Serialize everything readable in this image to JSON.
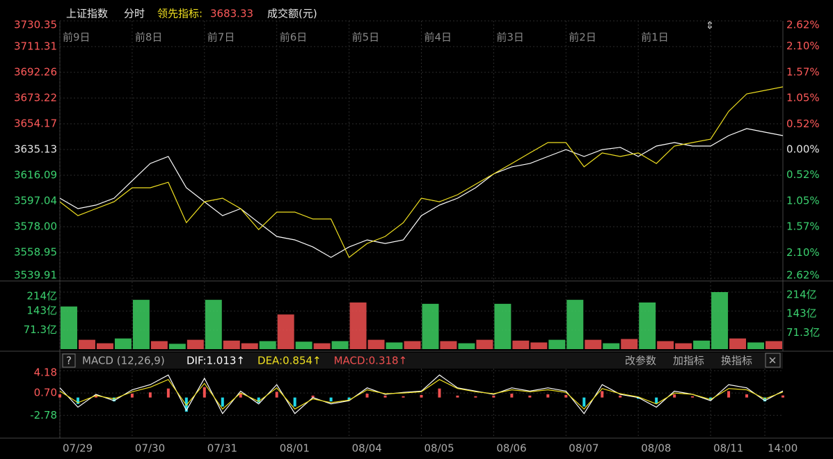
{
  "chart_data": [
    {
      "type": "line",
      "subtitle": "分时",
      "leading_value": 3683.33,
      "day_labels": [
        "前9日",
        "前8日",
        "前7日",
        "前6日",
        "前5日",
        "前4日",
        "前3日",
        "前2日",
        "前1日"
      ],
      "x": [
        0,
        0.25,
        0.5,
        0.75,
        1,
        1.25,
        1.5,
        1.75,
        2,
        2.25,
        2.5,
        2.75,
        3,
        3.25,
        3.5,
        3.75,
        4,
        4.25,
        4.5,
        4.75,
        5,
        5.25,
        5.5,
        5.75,
        6,
        6.25,
        6.5,
        6.75,
        7,
        7.25,
        7.5,
        7.75,
        8,
        8.25,
        8.5,
        8.75,
        9,
        9.25,
        9.5,
        9.75,
        10
      ],
      "xlim": [
        0,
        10
      ],
      "xticks": [
        0,
        1,
        2,
        3,
        4,
        5,
        6,
        7,
        8,
        9
      ],
      "ylim": [
        3539.91,
        3730.35
      ],
      "yticks": [
        3539.91,
        3558.95,
        {
          "value": 3578,
          "label": "3578.00"
        },
        3597.04,
        3616.09,
        3635.13,
        3654.17,
        3673.22,
        3692.26,
        3711.31,
        3730.35
      ],
      "y2lim": [
        -2.62,
        2.62
      ],
      "y2ticks": [
        {
          "value": -2.62,
          "label": "2.62%"
        },
        {
          "value": -2.1,
          "label": "2.10%"
        },
        {
          "value": -1.57,
          "label": "1.57%"
        },
        {
          "value": -1.05,
          "label": "1.05%"
        },
        {
          "value": -0.52,
          "label": "0.52%"
        },
        {
          "value": 0,
          "label": "0.00%"
        },
        {
          "value": 0.52,
          "label": "0.52%"
        },
        {
          "value": 1.05,
          "label": "1.05%"
        },
        {
          "value": 1.57,
          "label": "1.57%"
        },
        {
          "value": 2.1,
          "label": "2.10%"
        },
        {
          "value": 2.62,
          "label": "2.62%"
        }
      ],
      "grid": true,
      "series": [
        {
          "name": "上证指数",
          "color": "#ffffff",
          "values": [
            3599.1,
            3591.4,
            3594.0,
            3599.1,
            3612.0,
            3624.8,
            3630.0,
            3606.8,
            3596.5,
            3586.2,
            3591.4,
            3581.0,
            3570.8,
            3568.2,
            3563.0,
            3555.3,
            3563.0,
            3568.2,
            3565.6,
            3568.2,
            3586.2,
            3594.0,
            3599.1,
            3606.8,
            3617.1,
            3622.3,
            3624.8,
            3630.0,
            3635.1,
            3630.0,
            3635.1,
            3636.7,
            3630.0,
            3637.7,
            3640.3,
            3637.7,
            3637.7,
            3645.4,
            3650.6,
            3648.0,
            3645.4
          ]
        },
        {
          "name": "领先指标:",
          "color": "#f0e020",
          "values": [
            3596.5,
            3586.2,
            3591.4,
            3596.5,
            3606.8,
            3606.8,
            3610.9,
            3581.0,
            3596.5,
            3599.1,
            3591.4,
            3575.9,
            3588.8,
            3588.8,
            3583.7,
            3583.7,
            3555.3,
            3565.6,
            3570.8,
            3581.0,
            3599.1,
            3596.5,
            3601.7,
            3609.4,
            3617.1,
            3624.8,
            3632.6,
            3640.3,
            3640.3,
            3622.3,
            3632.6,
            3630.0,
            3632.6,
            3624.8,
            3637.7,
            3640.3,
            3642.8,
            3663.4,
            3676.3,
            3678.9,
            3681.5
          ]
        }
      ]
    },
    {
      "type": "bar",
      "title": "成交额(元)",
      "x": [
        0,
        0.25,
        0.5,
        0.75,
        1,
        1.25,
        1.5,
        1.75,
        2,
        2.25,
        2.5,
        2.75,
        3,
        3.25,
        3.5,
        3.75,
        4,
        4.25,
        4.5,
        4.75,
        5,
        5.25,
        5.5,
        5.75,
        6,
        6.25,
        6.5,
        6.75,
        7,
        7.25,
        7.5,
        7.75,
        8,
        8.25,
        8.5,
        8.75,
        9,
        9.25,
        9.5,
        9.75
      ],
      "xlim": [
        0,
        10
      ],
      "ylim": [
        0,
        214
      ],
      "yticks": [
        {
          "value": 71.3,
          "label": "71.3亿"
        },
        {
          "value": 143,
          "label": "143亿"
        },
        {
          "value": 214,
          "label": "214亿"
        }
      ],
      "values": [
        160,
        35,
        22,
        40,
        185,
        30,
        20,
        35,
        185,
        32,
        22,
        30,
        130,
        28,
        22,
        30,
        175,
        35,
        25,
        30,
        170,
        30,
        22,
        35,
        170,
        32,
        25,
        35,
        185,
        35,
        22,
        38,
        175,
        30,
        22,
        32,
        214,
        40,
        25,
        30
      ],
      "colors": [
        "#3ccf60",
        "#f05050",
        "#f05050",
        "#3ccf60",
        "#3ccf60",
        "#f05050",
        "#3ccf60",
        "#f05050",
        "#3ccf60",
        "#f05050",
        "#f05050",
        "#3ccf60",
        "#f05050",
        "#3ccf60",
        "#f05050",
        "#3ccf60",
        "#f05050",
        "#f05050",
        "#3ccf60",
        "#f05050",
        "#3ccf60",
        "#f05050",
        "#3ccf60",
        "#f05050",
        "#3ccf60",
        "#f05050",
        "#f05050",
        "#3ccf60",
        "#3ccf60",
        "#f05050",
        "#3ccf60",
        "#f05050",
        "#3ccf60",
        "#f05050",
        "#f05050",
        "#3ccf60",
        "#3ccf60",
        "#f05050",
        "#3ccf60",
        "#f05050"
      ]
    },
    {
      "type": "line",
      "help": "?",
      "title": "MACD (12,26,9)",
      "buttons": [
        "改参数",
        "加指标",
        "换指标"
      ],
      "x": [
        0,
        0.25,
        0.5,
        0.75,
        1,
        1.25,
        1.5,
        1.75,
        2,
        2.25,
        2.5,
        2.75,
        3,
        3.25,
        3.5,
        3.75,
        4,
        4.25,
        4.5,
        4.75,
        5,
        5.25,
        5.5,
        5.75,
        6,
        6.25,
        6.5,
        6.75,
        7,
        7.25,
        7.5,
        7.75,
        8,
        8.25,
        8.5,
        8.75,
        9,
        9.25,
        9.5,
        9.75,
        10
      ],
      "xlim": [
        0,
        10
      ],
      "xticks": [
        {
          "value": 0,
          "label": "07/29"
        },
        {
          "value": 1,
          "label": "07/30"
        },
        {
          "value": 2,
          "label": "07/31"
        },
        {
          "value": 3,
          "label": "08/01"
        },
        {
          "value": 4,
          "label": "08/04"
        },
        {
          "value": 5,
          "label": "08/05"
        },
        {
          "value": 6,
          "label": "08/06"
        },
        {
          "value": 7,
          "label": "08/07"
        },
        {
          "value": 8,
          "label": "08/08"
        },
        {
          "value": 9,
          "label": "08/11"
        },
        {
          "value": 9.75,
          "label": "14:00"
        }
      ],
      "ylim": [
        -6.1,
        4.5
      ],
      "yticks": [
        -2.78,
        {
          "value": 0.7,
          "label": "0.70"
        },
        4.18
      ],
      "series": [
        {
          "name": "MACD:0.318↑",
          "type": "bar",
          "up_color": "#f05050",
          "down_color": "#20d8e8",
          "values": [
            0.5,
            -1.0,
            0.4,
            -0.6,
            0.6,
            0.8,
            1.4,
            -2.2,
            1.6,
            -1.4,
            0.6,
            -0.8,
            0.9,
            -1.4,
            0.3,
            -0.6,
            -0.4,
            0.6,
            0.3,
            0.2,
            0.4,
            1.4,
            0.3,
            0.2,
            0.3,
            0.6,
            0.3,
            0.5,
            0.4,
            -1.4,
            1.0,
            0.3,
            -0.2,
            -0.9,
            0.5,
            0.2,
            -0.4,
            1.0,
            0.5,
            -0.6,
            0.318
          ]
        },
        {
          "name": "DIF:1.013↑",
          "type": "line",
          "color": "#ffffff",
          "values": [
            1.5,
            -1.5,
            0.5,
            -0.5,
            1.2,
            2.0,
            3.5,
            -2.0,
            3.0,
            -2.5,
            1.0,
            -1.0,
            2.0,
            -2.5,
            0.0,
            -1.0,
            -0.5,
            1.5,
            0.5,
            0.8,
            1.0,
            3.5,
            1.5,
            1.0,
            0.5,
            1.5,
            1.0,
            1.5,
            1.0,
            -2.5,
            2.0,
            0.5,
            0.0,
            -1.5,
            1.0,
            0.5,
            -0.5,
            2.0,
            1.5,
            -0.5,
            1.013
          ]
        },
        {
          "name": "DEA:0.854↑",
          "type": "line",
          "color": "#f0e020",
          "values": [
            1.0,
            -0.8,
            0.3,
            -0.2,
            0.9,
            1.6,
            2.8,
            -1.2,
            2.2,
            -1.8,
            0.7,
            -0.6,
            1.5,
            -1.8,
            -0.2,
            -0.8,
            -0.4,
            1.2,
            0.6,
            0.7,
            0.9,
            2.8,
            1.4,
            0.9,
            0.6,
            1.2,
            0.9,
            1.2,
            0.8,
            -1.8,
            1.4,
            0.6,
            0.1,
            -1.0,
            0.7,
            0.5,
            -0.3,
            1.4,
            1.2,
            -0.2,
            0.854
          ]
        }
      ]
    }
  ]
}
